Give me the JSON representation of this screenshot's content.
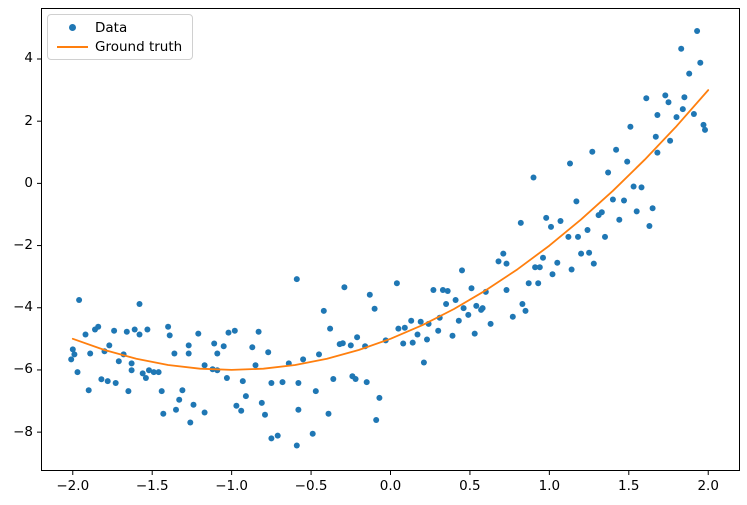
{
  "legend": {
    "data_label": "Data",
    "ground_truth_label": "Ground truth"
  },
  "colors": {
    "data_points": "#1f77b4",
    "ground_truth_line": "#ff7f0e",
    "spine": "#000000",
    "tick": "#000000",
    "legend_border": "#d0d0d0",
    "background": "#ffffff"
  },
  "chart_data": {
    "type": "scatter",
    "title": "",
    "xlabel": "",
    "ylabel": "",
    "grid": false,
    "xlim": [
      -2.2,
      2.2
    ],
    "ylim": [
      -9.25,
      5.64
    ],
    "legend_position": "upper left",
    "x_ticks": {
      "values": [
        -2.0,
        -1.5,
        -1.0,
        -0.5,
        0.0,
        0.5,
        1.0,
        1.5,
        2.0
      ],
      "labels": [
        "−2.0",
        "−1.5",
        "−1.0",
        "−0.5",
        "0.0",
        "0.5",
        "1.0",
        "1.5",
        "2.0"
      ]
    },
    "y_ticks": {
      "values": [
        4,
        2,
        0,
        -2,
        -4,
        -6,
        -8
      ],
      "labels": [
        "4",
        "2",
        "0",
        "−2",
        "−4",
        "−6",
        "−8"
      ]
    },
    "series": [
      {
        "name": "Data",
        "type": "scatter",
        "color": "#1f77b4",
        "marker_radius": 3,
        "points": [
          [
            -1.96,
            -3.75
          ],
          [
            -1.58,
            -3.88
          ],
          [
            -1.92,
            -4.86
          ],
          [
            -1.86,
            -4.7
          ],
          [
            -1.84,
            -4.61
          ],
          [
            -1.74,
            -4.74
          ],
          [
            -1.66,
            -4.77
          ],
          [
            -1.61,
            -4.7
          ],
          [
            -1.58,
            -4.86
          ],
          [
            -1.53,
            -4.7
          ],
          [
            -1.4,
            -4.61
          ],
          [
            -1.39,
            -4.89
          ],
          [
            -2.0,
            -5.34
          ],
          [
            -1.99,
            -5.5
          ],
          [
            -1.89,
            -5.47
          ],
          [
            -1.8,
            -5.4
          ],
          [
            -1.77,
            -5.21
          ],
          [
            -2.01,
            -5.66
          ],
          [
            -1.97,
            -6.07
          ],
          [
            -1.71,
            -5.72
          ],
          [
            -1.68,
            -5.5
          ],
          [
            -1.63,
            -5.79
          ],
          [
            -1.63,
            -6.01
          ],
          [
            -1.56,
            -6.11
          ],
          [
            -1.52,
            -6.01
          ],
          [
            -1.49,
            -6.07
          ],
          [
            -1.46,
            -6.07
          ],
          [
            -1.54,
            -6.26
          ],
          [
            -1.82,
            -6.3
          ],
          [
            -1.78,
            -6.36
          ],
          [
            -1.73,
            -6.42
          ],
          [
            -1.9,
            -6.65
          ],
          [
            -1.65,
            -6.68
          ],
          [
            -1.44,
            -6.68
          ],
          [
            -1.36,
            -5.47
          ],
          [
            -1.27,
            -5.21
          ],
          [
            -1.27,
            -5.47
          ],
          [
            -1.31,
            -6.65
          ],
          [
            -1.33,
            -6.96
          ],
          [
            -1.43,
            -7.41
          ],
          [
            -1.35,
            -7.28
          ],
          [
            -1.24,
            -7.12
          ],
          [
            -1.17,
            -7.37
          ],
          [
            -1.26,
            -7.69
          ],
          [
            -1.21,
            -4.83
          ],
          [
            -1.11,
            -5.15
          ],
          [
            -1.09,
            -5.47
          ],
          [
            -1.17,
            -5.85
          ],
          [
            -1.12,
            -5.98
          ],
          [
            -1.09,
            -6.01
          ],
          [
            -0.59,
            -3.08
          ],
          [
            -0.29,
            -3.34
          ],
          [
            0.04,
            -3.21
          ],
          [
            -0.13,
            -3.58
          ],
          [
            -0.1,
            -4.03
          ],
          [
            -0.42,
            -4.1
          ],
          [
            -1.02,
            -4.8
          ],
          [
            -0.98,
            -4.74
          ],
          [
            -0.83,
            -4.77
          ],
          [
            -0.38,
            -4.67
          ],
          [
            -1.05,
            -5.24
          ],
          [
            -0.87,
            -5.27
          ],
          [
            -0.77,
            -5.43
          ],
          [
            -0.32,
            -5.17
          ],
          [
            -0.3,
            -5.14
          ],
          [
            -0.25,
            -5.21
          ],
          [
            -0.21,
            -4.95
          ],
          [
            -0.16,
            -5.24
          ],
          [
            -0.03,
            -5.05
          ],
          [
            0.05,
            -4.67
          ],
          [
            -0.85,
            -5.85
          ],
          [
            -0.64,
            -5.79
          ],
          [
            -0.55,
            -5.66
          ],
          [
            -0.45,
            -5.5
          ],
          [
            -1.03,
            -6.26
          ],
          [
            -0.93,
            -6.36
          ],
          [
            -0.75,
            -6.42
          ],
          [
            -0.68,
            -6.39
          ],
          [
            -0.58,
            -6.42
          ],
          [
            -0.36,
            -6.29
          ],
          [
            -0.24,
            -6.2
          ],
          [
            -0.22,
            -6.29
          ],
          [
            -0.15,
            -6.39
          ],
          [
            -0.47,
            -6.68
          ],
          [
            -0.91,
            -6.84
          ],
          [
            -0.81,
            -7.06
          ],
          [
            -0.97,
            -7.15
          ],
          [
            -0.94,
            -7.31
          ],
          [
            -0.79,
            -7.44
          ],
          [
            -0.58,
            -7.28
          ],
          [
            -0.39,
            -7.41
          ],
          [
            -0.07,
            -6.9
          ],
          [
            -0.09,
            -7.61
          ],
          [
            -0.71,
            -8.11
          ],
          [
            -0.75,
            -8.2
          ],
          [
            -0.59,
            -8.43
          ],
          [
            -0.49,
            -8.05
          ],
          [
            0.71,
            -2.26
          ],
          [
            0.68,
            -2.51
          ],
          [
            0.73,
            -2.58
          ],
          [
            0.96,
            -2.39
          ],
          [
            0.91,
            -2.7
          ],
          [
            0.94,
            -2.7
          ],
          [
            1.02,
            -2.92
          ],
          [
            1.05,
            -2.55
          ],
          [
            1.14,
            -2.77
          ],
          [
            0.45,
            -2.8
          ],
          [
            0.87,
            -3.21
          ],
          [
            0.93,
            -3.21
          ],
          [
            0.27,
            -3.43
          ],
          [
            0.33,
            -3.43
          ],
          [
            0.36,
            -3.46
          ],
          [
            0.51,
            -3.37
          ],
          [
            0.6,
            -3.49
          ],
          [
            0.73,
            -3.43
          ],
          [
            0.41,
            -3.75
          ],
          [
            0.35,
            -3.88
          ],
          [
            0.46,
            -4.01
          ],
          [
            0.54,
            -3.94
          ],
          [
            0.57,
            -4.07
          ],
          [
            0.58,
            -4.01
          ],
          [
            0.83,
            -3.88
          ],
          [
            0.85,
            -4.1
          ],
          [
            0.77,
            -4.29
          ],
          [
            0.13,
            -4.42
          ],
          [
            0.19,
            -4.45
          ],
          [
            0.24,
            -4.52
          ],
          [
            0.31,
            -4.32
          ],
          [
            0.43,
            -4.42
          ],
          [
            0.49,
            -4.23
          ],
          [
            0.63,
            -4.52
          ],
          [
            0.09,
            -4.64
          ],
          [
            0.17,
            -4.86
          ],
          [
            0.23,
            -5.02
          ],
          [
            0.14,
            -5.12
          ],
          [
            0.08,
            -5.15
          ],
          [
            0.3,
            -4.74
          ],
          [
            0.39,
            -4.9
          ],
          [
            0.53,
            -4.83
          ],
          [
            0.21,
            -5.76
          ],
          [
            1.53,
            -0.1
          ],
          [
            1.58,
            -0.13
          ],
          [
            1.17,
            -0.58
          ],
          [
            1.4,
            -0.52
          ],
          [
            1.47,
            -0.55
          ],
          [
            1.31,
            -1.02
          ],
          [
            1.33,
            -0.93
          ],
          [
            1.55,
            -0.9
          ],
          [
            1.65,
            -0.8
          ],
          [
            1.07,
            -1.21
          ],
          [
            1.44,
            -1.17
          ],
          [
            1.63,
            -1.37
          ],
          [
            1.24,
            -1.5
          ],
          [
            1.35,
            -1.72
          ],
          [
            1.12,
            -1.72
          ],
          [
            1.18,
            -1.72
          ],
          [
            1.2,
            -2.26
          ],
          [
            1.25,
            -2.23
          ],
          [
            1.28,
            -2.58
          ],
          [
            1.93,
            4.9
          ],
          [
            1.83,
            4.33
          ],
          [
            1.95,
            3.88
          ],
          [
            1.88,
            3.53
          ],
          [
            1.73,
            2.83
          ],
          [
            1.61,
            2.74
          ],
          [
            1.75,
            2.61
          ],
          [
            1.85,
            2.77
          ],
          [
            1.84,
            2.39
          ],
          [
            1.68,
            2.2
          ],
          [
            1.8,
            2.13
          ],
          [
            1.91,
            2.23
          ],
          [
            1.97,
            1.88
          ],
          [
            1.98,
            1.72
          ],
          [
            1.51,
            1.82
          ],
          [
            1.67,
            1.5
          ],
          [
            1.76,
            1.37
          ],
          [
            1.68,
            0.99
          ],
          [
            1.49,
            0.7
          ],
          [
            1.27,
            1.02
          ],
          [
            1.42,
            1.08
          ],
          [
            1.13,
            0.64
          ],
          [
            1.37,
            0.35
          ],
          [
            0.9,
            0.19
          ],
          [
            0.98,
            -1.11
          ],
          [
            1.01,
            -1.4
          ],
          [
            0.82,
            -1.27
          ]
        ]
      },
      {
        "name": "Ground truth",
        "type": "line",
        "color": "#ff7f0e",
        "line_width": 1.8,
        "function": "y = x^2 + 2x - 5",
        "points": [
          [
            -2.0,
            -5.0
          ],
          [
            -1.8,
            -5.36
          ],
          [
            -1.6,
            -5.64
          ],
          [
            -1.4,
            -5.84
          ],
          [
            -1.2,
            -5.96
          ],
          [
            -1.0,
            -6.0
          ],
          [
            -0.8,
            -5.96
          ],
          [
            -0.6,
            -5.84
          ],
          [
            -0.4,
            -5.64
          ],
          [
            -0.2,
            -5.36
          ],
          [
            0.0,
            -5.0
          ],
          [
            0.2,
            -4.56
          ],
          [
            0.4,
            -4.04
          ],
          [
            0.6,
            -3.44
          ],
          [
            0.8,
            -2.76
          ],
          [
            1.0,
            -2.0
          ],
          [
            1.2,
            -1.16
          ],
          [
            1.4,
            -0.24
          ],
          [
            1.6,
            0.76
          ],
          [
            1.8,
            1.84
          ],
          [
            2.0,
            3.0
          ]
        ]
      }
    ]
  }
}
